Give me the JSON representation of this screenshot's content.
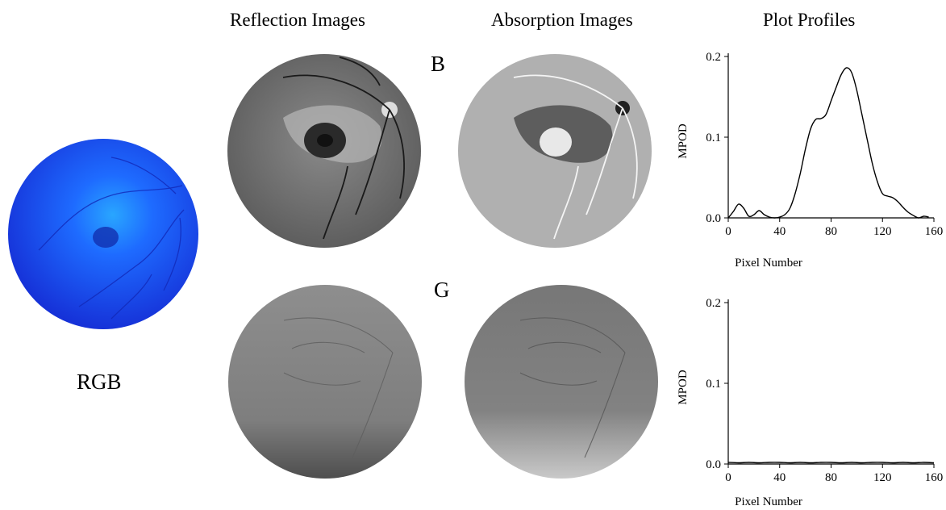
{
  "headings": {
    "reflection": "Reflection Images",
    "absorption": "Absorption Images",
    "profiles": "Plot Profiles"
  },
  "rows": {
    "b_label": "B",
    "g_label": "G"
  },
  "rgb_label": "RGB",
  "colors": {
    "rgb_fundus": "#1a3cf0",
    "curve": "#000000"
  },
  "chart_data": [
    {
      "type": "line",
      "row": "B",
      "xlabel": "Pixel Number",
      "ylabel": "MPOD",
      "xlim": [
        0,
        160
      ],
      "ylim": [
        0,
        0.2
      ],
      "xticks": [
        "0",
        "40",
        "80",
        "120",
        "160"
      ],
      "yticks": [
        "0.0",
        "0.1",
        "0.2"
      ],
      "x": [
        0,
        4,
        8,
        12,
        16,
        20,
        24,
        28,
        32,
        36,
        40,
        44,
        48,
        52,
        56,
        60,
        64,
        68,
        72,
        76,
        80,
        84,
        88,
        92,
        96,
        100,
        104,
        108,
        112,
        116,
        120,
        124,
        128,
        132,
        136,
        140,
        144,
        148,
        152,
        156
      ],
      "y": [
        0.0,
        0.008,
        0.017,
        0.012,
        0.002,
        0.004,
        0.009,
        0.004,
        0.001,
        0.0,
        0.001,
        0.004,
        0.012,
        0.03,
        0.055,
        0.085,
        0.11,
        0.122,
        0.123,
        0.128,
        0.145,
        0.162,
        0.178,
        0.186,
        0.18,
        0.158,
        0.128,
        0.098,
        0.068,
        0.045,
        0.03,
        0.027,
        0.025,
        0.02,
        0.013,
        0.007,
        0.003,
        0.0,
        0.002,
        0.001
      ]
    },
    {
      "type": "line",
      "row": "G",
      "xlabel": "Pixel Number",
      "ylabel": "MPOD",
      "xlim": [
        0,
        160
      ],
      "ylim": [
        0,
        0.2
      ],
      "xticks": [
        "0",
        "40",
        "80",
        "120",
        "160"
      ],
      "yticks": [
        "0.0",
        "0.1",
        "0.2"
      ],
      "x": [
        0,
        8,
        16,
        24,
        32,
        40,
        48,
        56,
        64,
        72,
        80,
        88,
        96,
        104,
        112,
        120,
        128,
        136,
        144,
        152,
        160
      ],
      "y": [
        0.002,
        0.0015,
        0.002,
        0.0015,
        0.002,
        0.002,
        0.0015,
        0.002,
        0.0015,
        0.002,
        0.002,
        0.0015,
        0.002,
        0.0015,
        0.002,
        0.002,
        0.0015,
        0.002,
        0.0015,
        0.002,
        0.0015
      ]
    }
  ]
}
